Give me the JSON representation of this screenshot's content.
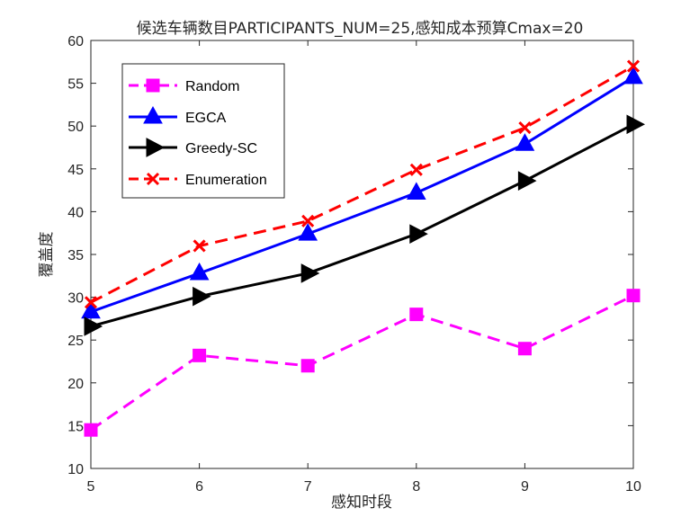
{
  "chart_data": {
    "type": "line",
    "title": "候选车辆数目PARTICIPANTS_NUM=25,感知成本预算Cmax=20",
    "xlabel": "感知时段",
    "ylabel": "覆盖度",
    "x": [
      5,
      6,
      7,
      8,
      9,
      10
    ],
    "xlim": [
      5,
      10
    ],
    "ylim": [
      10,
      60
    ],
    "xticks": [
      5,
      6,
      7,
      8,
      9,
      10
    ],
    "yticks": [
      10,
      15,
      20,
      25,
      30,
      35,
      40,
      45,
      50,
      55,
      60
    ],
    "grid": false,
    "legend_position": "top-left",
    "series": [
      {
        "name": "Random",
        "color": "#ff00ff",
        "dash": "dashed",
        "marker": "square",
        "values": [
          14.5,
          23.2,
          22.0,
          28.0,
          24.0,
          30.2
        ]
      },
      {
        "name": "EGCA",
        "color": "#0000ff",
        "dash": "solid",
        "marker": "triangle-up",
        "values": [
          28.3,
          32.8,
          37.4,
          42.2,
          47.9,
          55.7
        ]
      },
      {
        "name": "Greedy-SC",
        "color": "#000000",
        "dash": "solid",
        "marker": "triangle-right",
        "values": [
          26.6,
          30.1,
          32.8,
          37.4,
          43.6,
          50.2
        ]
      },
      {
        "name": "Enumeration",
        "color": "#ff0000",
        "dash": "dashed",
        "marker": "x",
        "values": [
          29.4,
          36.0,
          38.9,
          44.9,
          49.8,
          57.0
        ]
      }
    ]
  }
}
